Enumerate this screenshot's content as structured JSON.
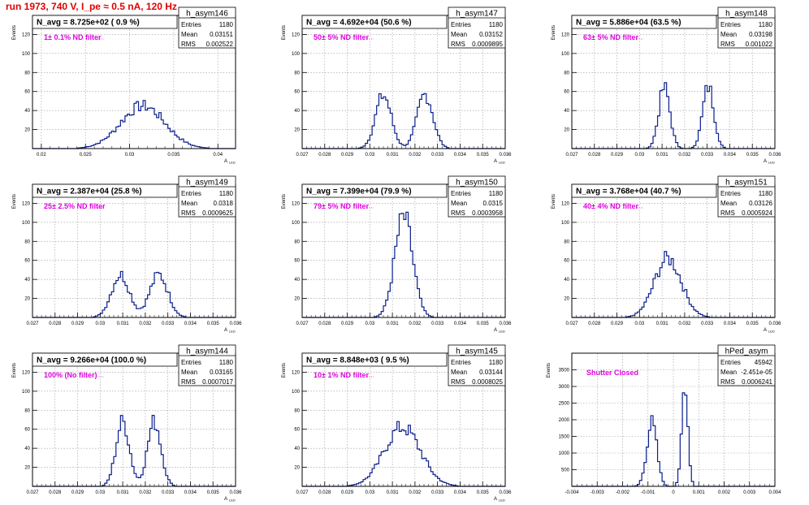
{
  "page": {
    "header": "run 1973,   740 V, I_pe ≈ 0.5 nA, 120 Hz"
  },
  "chart_data": [
    {
      "type": "histogram",
      "name": "h_asym146",
      "stat_labels": [
        "Entries",
        "Mean",
        "RMS"
      ],
      "entries": "1180",
      "mean": "0.03151",
      "rms": "0.002522",
      "title": "N_avg = 8.725e+02 ( 0.9 %)",
      "annotation": "1± 0.1% ND filter",
      "xlabel": "A_LED",
      "ylabel": "Events",
      "xlim": [
        0.019,
        0.042
      ],
      "ylim": [
        0,
        140
      ],
      "xticks": [
        0.02,
        0.025,
        0.03,
        0.035,
        0.04
      ],
      "xtick_labels": [
        "0.02",
        "0.025",
        "0.03",
        "0.035",
        "0.04"
      ],
      "yticks": [
        20,
        40,
        60,
        80,
        100,
        120
      ],
      "ytick_labels": [
        "20",
        "40",
        "60",
        "80",
        "100",
        "120"
      ],
      "peaks": [
        {
          "center": 0.0315,
          "sigma": 0.0025,
          "height": 45
        }
      ],
      "grid": true
    },
    {
      "type": "histogram",
      "name": "h_asym147",
      "stat_labels": [
        "Entries",
        "Mean",
        "RMS"
      ],
      "entries": "1180",
      "mean": "0.03152",
      "rms": "0.0009895",
      "title": "N_avg = 4.692e+04 (50.6 %)",
      "annotation": "50± 5% ND filter",
      "xlabel": "A_LED",
      "ylabel": "Events",
      "xlim": [
        0.027,
        0.036
      ],
      "ylim": [
        0,
        140
      ],
      "xticks": [
        0.027,
        0.028,
        0.029,
        0.03,
        0.031,
        0.032,
        0.033,
        0.034,
        0.035,
        0.036
      ],
      "xtick_labels": [
        "0.027",
        "0.028",
        "0.029",
        "0.03",
        "0.031",
        "0.032",
        "0.033",
        "0.034",
        "0.035",
        "0.036"
      ],
      "yticks": [
        20,
        40,
        60,
        80,
        100,
        120
      ],
      "ytick_labels": [
        "20",
        "40",
        "60",
        "80",
        "100",
        "120"
      ],
      "peaks": [
        {
          "center": 0.0306,
          "sigma": 0.00035,
          "height": 56
        },
        {
          "center": 0.03245,
          "sigma": 0.00035,
          "height": 57
        }
      ],
      "grid": true
    },
    {
      "type": "histogram",
      "name": "h_asym148",
      "stat_labels": [
        "Entries",
        "Mean",
        "RMS"
      ],
      "entries": "1180",
      "mean": "0.03198",
      "rms": "0.001022",
      "title": "N_avg = 5.886e+04 (63.5 %)",
      "annotation": "63± 5% ND filter",
      "xlabel": "A_LED",
      "ylabel": "Events",
      "xlim": [
        0.027,
        0.036
      ],
      "ylim": [
        0,
        140
      ],
      "xticks": [
        0.027,
        0.028,
        0.029,
        0.03,
        0.031,
        0.032,
        0.033,
        0.034,
        0.035,
        0.036
      ],
      "xtick_labels": [
        "0.027",
        "0.028",
        "0.029",
        "0.03",
        "0.031",
        "0.032",
        "0.033",
        "0.034",
        "0.035",
        "0.036"
      ],
      "yticks": [
        20,
        40,
        60,
        80,
        100,
        120
      ],
      "ytick_labels": [
        "20",
        "40",
        "60",
        "80",
        "100",
        "120"
      ],
      "peaks": [
        {
          "center": 0.0311,
          "sigma": 0.00025,
          "height": 64
        },
        {
          "center": 0.03305,
          "sigma": 0.00025,
          "height": 65
        }
      ],
      "grid": true
    },
    {
      "type": "histogram",
      "name": "h_asym149",
      "stat_labels": [
        "Entries",
        "Mean",
        "RMS"
      ],
      "entries": "1180",
      "mean": "0.0318",
      "rms": "0.0009625",
      "title": "N_avg = 2.387e+04 (25.8 %)",
      "annotation": "25± 2.5% ND filter",
      "xlabel": "A_LED",
      "ylabel": "Events",
      "xlim": [
        0.027,
        0.036
      ],
      "ylim": [
        0,
        140
      ],
      "xticks": [
        0.027,
        0.028,
        0.029,
        0.03,
        0.031,
        0.032,
        0.033,
        0.034,
        0.035,
        0.036
      ],
      "xtick_labels": [
        "0.027",
        "0.028",
        "0.029",
        "0.03",
        "0.031",
        "0.032",
        "0.033",
        "0.034",
        "0.035",
        "0.036"
      ],
      "yticks": [
        20,
        40,
        60,
        80,
        100,
        120
      ],
      "ytick_labels": [
        "20",
        "40",
        "60",
        "80",
        "100",
        "120"
      ],
      "peaks": [
        {
          "center": 0.0309,
          "sigma": 0.0004,
          "height": 45
        },
        {
          "center": 0.0326,
          "sigma": 0.0004,
          "height": 45
        }
      ],
      "grid": true
    },
    {
      "type": "histogram",
      "name": "h_asym150",
      "stat_labels": [
        "Entries",
        "Mean",
        "RMS"
      ],
      "entries": "1180",
      "mean": "0.0315",
      "rms": "0.0003958",
      "title": "N_avg = 7.399e+04 (79.9 %)",
      "annotation": "79± 5% ND filter",
      "xlabel": "A_LED",
      "ylabel": "Events",
      "xlim": [
        0.027,
        0.036
      ],
      "ylim": [
        0,
        140
      ],
      "xticks": [
        0.027,
        0.028,
        0.029,
        0.03,
        0.031,
        0.032,
        0.033,
        0.034,
        0.035,
        0.036
      ],
      "xtick_labels": [
        "0.027",
        "0.028",
        "0.029",
        "0.03",
        "0.031",
        "0.032",
        "0.033",
        "0.034",
        "0.035",
        "0.036"
      ],
      "yticks": [
        20,
        40,
        60,
        80,
        100,
        120
      ],
      "ytick_labels": [
        "20",
        "40",
        "60",
        "80",
        "100",
        "120"
      ],
      "peaks": [
        {
          "center": 0.0315,
          "sigma": 0.0004,
          "height": 105
        }
      ],
      "grid": true
    },
    {
      "type": "histogram",
      "name": "h_asym151",
      "stat_labels": [
        "Entries",
        "Mean",
        "RMS"
      ],
      "entries": "1180",
      "mean": "0.03126",
      "rms": "0.0005924",
      "title": "N_avg = 3.768e+04 (40.7 %)",
      "annotation": "40± 4% ND filter",
      "xlabel": "A_LED",
      "ylabel": "Events",
      "xlim": [
        0.027,
        0.036
      ],
      "ylim": [
        0,
        140
      ],
      "xticks": [
        0.027,
        0.028,
        0.029,
        0.03,
        0.031,
        0.032,
        0.033,
        0.034,
        0.035,
        0.036
      ],
      "xtick_labels": [
        "0.027",
        "0.028",
        "0.029",
        "0.03",
        "0.031",
        "0.032",
        "0.033",
        "0.034",
        "0.035",
        "0.036"
      ],
      "yticks": [
        20,
        40,
        60,
        80,
        100,
        120
      ],
      "ytick_labels": [
        "20",
        "40",
        "60",
        "80",
        "100",
        "120"
      ],
      "peaks": [
        {
          "center": 0.03126,
          "sigma": 0.0006,
          "height": 62
        }
      ],
      "grid": true
    },
    {
      "type": "histogram",
      "name": "h_asym144",
      "stat_labels": [
        "Entries",
        "Mean",
        "RMS"
      ],
      "entries": "1180",
      "mean": "0.03165",
      "rms": "0.0007017",
      "title": "N_avg = 9.266e+04 (100.0 %)",
      "annotation": "100% (No filter)",
      "xlabel": "A_LED",
      "ylabel": "Events",
      "xlim": [
        0.027,
        0.036
      ],
      "ylim": [
        0,
        140
      ],
      "xticks": [
        0.027,
        0.028,
        0.029,
        0.03,
        0.031,
        0.032,
        0.033,
        0.034,
        0.035,
        0.036
      ],
      "xtick_labels": [
        "0.027",
        "0.028",
        "0.029",
        "0.03",
        "0.031",
        "0.032",
        "0.033",
        "0.034",
        "0.035",
        "0.036"
      ],
      "yticks": [
        20,
        40,
        60,
        80,
        100,
        120
      ],
      "ytick_labels": [
        "20",
        "40",
        "60",
        "80",
        "100",
        "120"
      ],
      "peaks": [
        {
          "center": 0.031,
          "sigma": 0.0003,
          "height": 68
        },
        {
          "center": 0.0324,
          "sigma": 0.0003,
          "height": 68
        }
      ],
      "grid": true
    },
    {
      "type": "histogram",
      "name": "h_asym145",
      "stat_labels": [
        "Entries",
        "Mean",
        "RMS"
      ],
      "entries": "1180",
      "mean": "0.03144",
      "rms": "0.0008025",
      "title": "N_avg = 8.848e+03 ( 9.5 %)",
      "annotation": "10± 1% ND filter",
      "xlabel": "A_LED",
      "ylabel": "Events",
      "xlim": [
        0.027,
        0.036
      ],
      "ylim": [
        0,
        140
      ],
      "xticks": [
        0.027,
        0.028,
        0.029,
        0.03,
        0.031,
        0.032,
        0.033,
        0.034,
        0.035,
        0.036
      ],
      "xtick_labels": [
        "0.027",
        "0.028",
        "0.029",
        "0.03",
        "0.031",
        "0.032",
        "0.033",
        "0.034",
        "0.035",
        "0.036"
      ],
      "yticks": [
        20,
        40,
        60,
        80,
        100,
        120
      ],
      "ytick_labels": [
        "20",
        "40",
        "60",
        "80",
        "100",
        "120"
      ],
      "peaks": [
        {
          "center": 0.03144,
          "sigma": 0.0008,
          "height": 62
        }
      ],
      "grid": true
    },
    {
      "type": "histogram",
      "name": "hPed_asym",
      "stat_labels": [
        "Entries",
        "Mean",
        "RMS"
      ],
      "entries": "45942",
      "mean": "-2.451e-05",
      "rms": "0.0006241",
      "title": "",
      "annotation": "Shutter Closed",
      "xlabel": "",
      "ylabel": "Events",
      "xlim": [
        -0.004,
        0.004
      ],
      "ylim": [
        0,
        4000
      ],
      "xticks": [
        -0.004,
        -0.003,
        -0.002,
        -0.001,
        0,
        0.001,
        0.002,
        0.003,
        0.004
      ],
      "xtick_labels": [
        "-0.004",
        "-0.003",
        "-0.002",
        "-0.001",
        "0",
        "0.001",
        "0.002",
        "0.003",
        "0.004"
      ],
      "yticks": [
        500,
        1000,
        1500,
        2000,
        2500,
        3000,
        3500
      ],
      "ytick_labels": [
        "500",
        "1000",
        "1500",
        "2000",
        "2500",
        "3000",
        "3500"
      ],
      "peaks": [
        {
          "center": -0.00085,
          "sigma": 0.0002,
          "height": 1900
        },
        {
          "center": 0.00045,
          "sigma": 0.00012,
          "height": 3300
        }
      ],
      "grid": true
    }
  ]
}
